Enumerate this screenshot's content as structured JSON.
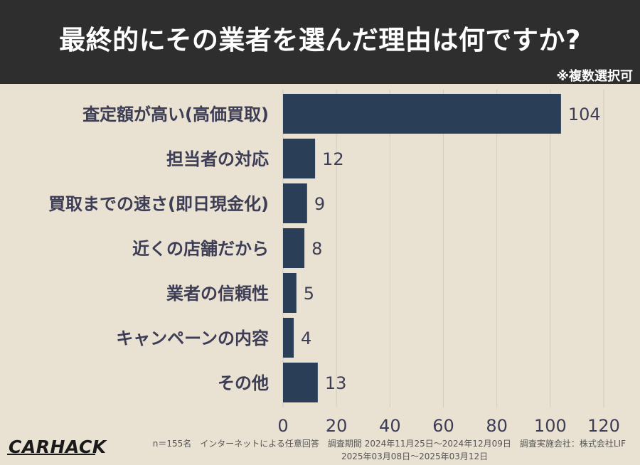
{
  "header": {
    "title": "最終的にその業者を選んだ理由は何ですか?",
    "note": "※複数選択可"
  },
  "footer": {
    "logo": "CARHACK",
    "meta_line1": "n＝155名　インターネットによる任意回答　調査期間 2024年11月25日～2024年12月09日　調査実施会社：株式会社LIF",
    "meta_line2": "2025年03月08日～2025年03月12日"
  },
  "colors": {
    "background": "#e9e1d2",
    "header": "#2e2e2e",
    "bar": "#2a3f57",
    "label": "#3d3d55",
    "grid": "#d4ccbd"
  },
  "chart_data": {
    "type": "bar",
    "orientation": "horizontal",
    "categories": [
      "査定額が高い(高価買取)",
      "担当者の対応",
      "買取までの速さ(即日現金化)",
      "近くの店舗だから",
      "業者の信頼性",
      "キャンペーンの内容",
      "その他"
    ],
    "values": [
      104,
      12,
      9,
      8,
      5,
      4,
      13
    ],
    "xlim": [
      0,
      120
    ],
    "xticks": [
      0,
      20,
      40,
      60,
      80,
      100,
      120
    ],
    "grid": true
  }
}
